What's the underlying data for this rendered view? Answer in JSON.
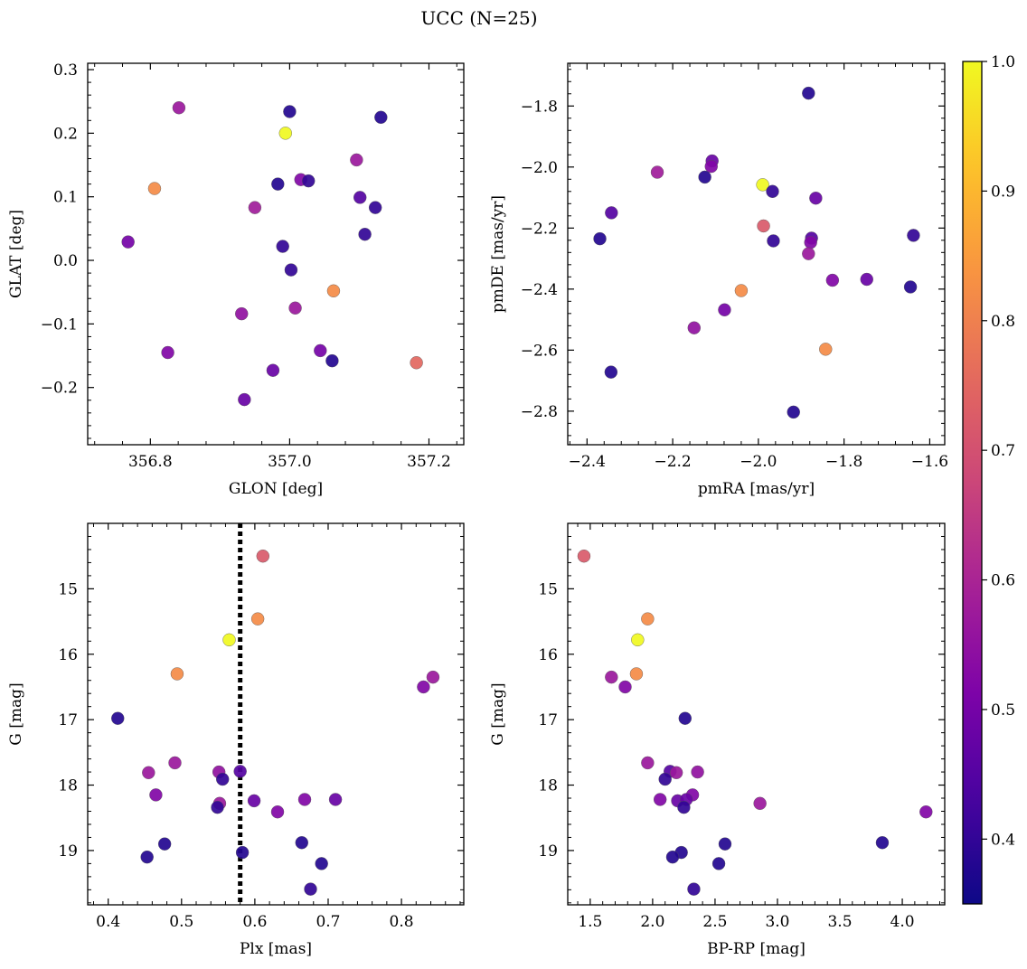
{
  "figure": {
    "title": "UCC (N=25)"
  },
  "colorbar": {
    "min": 0.35,
    "max": 1.0,
    "ticks": [
      0.4,
      0.5,
      0.6,
      0.7,
      0.8,
      0.9,
      1.0
    ],
    "tick_labels": [
      "0.4",
      "0.5",
      "0.6",
      "0.7",
      "0.8",
      "0.9",
      "1.0"
    ],
    "colormap": "plasma"
  },
  "chart_data": [
    {
      "id": "glon-glat",
      "type": "scatter",
      "xlabel": "GLON [deg]",
      "ylabel": "GLAT [deg]",
      "xlim": [
        356.71,
        357.25
      ],
      "ylim": [
        -0.29,
        0.31
      ],
      "xticks": [
        356.8,
        357.0,
        357.2
      ],
      "xtick_labels": [
        "356.8",
        "357.0",
        "357.2"
      ],
      "yticks": [
        -0.2,
        -0.1,
        0.0,
        0.1,
        0.2,
        0.3
      ],
      "ytick_labels": [
        "−0.2",
        "−0.1",
        "0.0",
        "0.1",
        "0.2",
        "0.3"
      ],
      "y_inverted": false,
      "points": [
        {
          "x": 356.841,
          "y": 0.24,
          "c": 0.57
        },
        {
          "x": 357.0,
          "y": 0.234,
          "c": 0.38
        },
        {
          "x": 357.131,
          "y": 0.225,
          "c": 0.38
        },
        {
          "x": 356.994,
          "y": 0.2,
          "c": 1.0
        },
        {
          "x": 357.096,
          "y": 0.158,
          "c": 0.57
        },
        {
          "x": 356.806,
          "y": 0.113,
          "c": 0.82
        },
        {
          "x": 356.983,
          "y": 0.12,
          "c": 0.38
        },
        {
          "x": 357.016,
          "y": 0.127,
          "c": 0.52
        },
        {
          "x": 357.027,
          "y": 0.125,
          "c": 0.4
        },
        {
          "x": 357.101,
          "y": 0.099,
          "c": 0.45
        },
        {
          "x": 357.123,
          "y": 0.083,
          "c": 0.4
        },
        {
          "x": 356.95,
          "y": 0.083,
          "c": 0.58
        },
        {
          "x": 357.108,
          "y": 0.041,
          "c": 0.4
        },
        {
          "x": 356.768,
          "y": 0.029,
          "c": 0.5
        },
        {
          "x": 356.99,
          "y": 0.022,
          "c": 0.4
        },
        {
          "x": 357.002,
          "y": -0.015,
          "c": 0.4
        },
        {
          "x": 357.063,
          "y": -0.048,
          "c": 0.82
        },
        {
          "x": 357.008,
          "y": -0.075,
          "c": 0.57
        },
        {
          "x": 356.931,
          "y": -0.084,
          "c": 0.55
        },
        {
          "x": 357.044,
          "y": -0.142,
          "c": 0.5
        },
        {
          "x": 356.825,
          "y": -0.145,
          "c": 0.52
        },
        {
          "x": 357.061,
          "y": -0.158,
          "c": 0.38
        },
        {
          "x": 357.182,
          "y": -0.161,
          "c": 0.75
        },
        {
          "x": 356.976,
          "y": -0.173,
          "c": 0.48
        },
        {
          "x": 356.935,
          "y": -0.219,
          "c": 0.48
        }
      ]
    },
    {
      "id": "pmra-pmde",
      "type": "scatter",
      "xlabel": "pmRA [mas/yr]",
      "ylabel": "pmDE [mas/yr]",
      "xlim": [
        -2.445,
        -1.565
      ],
      "ylim": [
        -2.91,
        -1.66
      ],
      "xticks": [
        -2.4,
        -2.2,
        -2.0,
        -1.8,
        -1.6
      ],
      "xtick_labels": [
        "−2.4",
        "−2.2",
        "−2.0",
        "−1.8",
        "−1.6"
      ],
      "yticks": [
        -2.8,
        -2.6,
        -2.4,
        -2.2,
        -2.0,
        -1.8
      ],
      "ytick_labels": [
        "−2.8",
        "−2.6",
        "−2.4",
        "−2.2",
        "−2.0",
        "−1.8"
      ],
      "y_inverted": false,
      "points": [
        {
          "x": -1.883,
          "y": -1.758,
          "c": 0.38
        },
        {
          "x": -2.236,
          "y": -2.017,
          "c": 0.58
        },
        {
          "x": -2.108,
          "y": -1.98,
          "c": 0.48
        },
        {
          "x": -2.11,
          "y": -1.998,
          "c": 0.52
        },
        {
          "x": -2.125,
          "y": -2.033,
          "c": 0.38
        },
        {
          "x": -1.99,
          "y": -2.058,
          "c": 1.0
        },
        {
          "x": -1.967,
          "y": -2.08,
          "c": 0.4
        },
        {
          "x": -1.866,
          "y": -2.102,
          "c": 0.48
        },
        {
          "x": -2.343,
          "y": -2.15,
          "c": 0.45
        },
        {
          "x": -1.988,
          "y": -2.193,
          "c": 0.72
        },
        {
          "x": -1.638,
          "y": -2.224,
          "c": 0.4
        },
        {
          "x": -2.37,
          "y": -2.235,
          "c": 0.38
        },
        {
          "x": -1.876,
          "y": -2.233,
          "c": 0.45
        },
        {
          "x": -1.878,
          "y": -2.247,
          "c": 0.52
        },
        {
          "x": -1.965,
          "y": -2.242,
          "c": 0.4
        },
        {
          "x": -1.883,
          "y": -2.284,
          "c": 0.57
        },
        {
          "x": -1.827,
          "y": -2.371,
          "c": 0.52
        },
        {
          "x": -1.747,
          "y": -2.368,
          "c": 0.48
        },
        {
          "x": -1.645,
          "y": -2.393,
          "c": 0.38
        },
        {
          "x": -2.04,
          "y": -2.405,
          "c": 0.82
        },
        {
          "x": -2.079,
          "y": -2.468,
          "c": 0.5
        },
        {
          "x": -2.15,
          "y": -2.527,
          "c": 0.55
        },
        {
          "x": -1.843,
          "y": -2.597,
          "c": 0.82
        },
        {
          "x": -2.344,
          "y": -2.672,
          "c": 0.38
        },
        {
          "x": -1.918,
          "y": -2.803,
          "c": 0.38
        }
      ]
    },
    {
      "id": "plx-g",
      "type": "scatter",
      "xlabel": "Plx [mas]",
      "ylabel": "G [mag]",
      "xlim": [
        0.372,
        0.885
      ],
      "ylim": [
        19.83,
        14.0
      ],
      "xticks": [
        0.4,
        0.5,
        0.6,
        0.7,
        0.8
      ],
      "xtick_labels": [
        "0.4",
        "0.5",
        "0.6",
        "0.7",
        "0.8"
      ],
      "yticks": [
        15,
        16,
        17,
        18,
        19
      ],
      "ytick_labels": [
        "15",
        "16",
        "17",
        "18",
        "19"
      ],
      "y_inverted": true,
      "vline": {
        "x": 0.58
      },
      "points": [
        {
          "x": 0.611,
          "y": 14.5,
          "c": 0.72
        },
        {
          "x": 0.604,
          "y": 15.46,
          "c": 0.82
        },
        {
          "x": 0.565,
          "y": 15.78,
          "c": 1.0
        },
        {
          "x": 0.494,
          "y": 16.3,
          "c": 0.82
        },
        {
          "x": 0.843,
          "y": 16.35,
          "c": 0.57
        },
        {
          "x": 0.83,
          "y": 16.5,
          "c": 0.52
        },
        {
          "x": 0.413,
          "y": 16.98,
          "c": 0.38
        },
        {
          "x": 0.491,
          "y": 17.66,
          "c": 0.57
        },
        {
          "x": 0.455,
          "y": 17.81,
          "c": 0.57
        },
        {
          "x": 0.551,
          "y": 17.8,
          "c": 0.55
        },
        {
          "x": 0.58,
          "y": 17.79,
          "c": 0.45
        },
        {
          "x": 0.556,
          "y": 17.91,
          "c": 0.4
        },
        {
          "x": 0.465,
          "y": 18.15,
          "c": 0.52
        },
        {
          "x": 0.599,
          "y": 18.24,
          "c": 0.48
        },
        {
          "x": 0.668,
          "y": 18.22,
          "c": 0.52
        },
        {
          "x": 0.71,
          "y": 18.22,
          "c": 0.48
        },
        {
          "x": 0.552,
          "y": 18.28,
          "c": 0.57
        },
        {
          "x": 0.549,
          "y": 18.34,
          "c": 0.4
        },
        {
          "x": 0.631,
          "y": 18.41,
          "c": 0.52
        },
        {
          "x": 0.664,
          "y": 18.88,
          "c": 0.38
        },
        {
          "x": 0.477,
          "y": 18.9,
          "c": 0.38
        },
        {
          "x": 0.583,
          "y": 19.03,
          "c": 0.38
        },
        {
          "x": 0.453,
          "y": 19.1,
          "c": 0.38
        },
        {
          "x": 0.691,
          "y": 19.2,
          "c": 0.38
        },
        {
          "x": 0.676,
          "y": 19.59,
          "c": 0.4
        }
      ]
    },
    {
      "id": "bprp-g",
      "type": "scatter",
      "xlabel": "BP-RP [mag]",
      "ylabel": "G [mag]",
      "xlim": [
        1.32,
        4.34
      ],
      "ylim": [
        19.83,
        14.0
      ],
      "xticks": [
        1.5,
        2.0,
        2.5,
        3.0,
        3.5,
        4.0
      ],
      "xtick_labels": [
        "1.5",
        "2.0",
        "2.5",
        "3.0",
        "3.5",
        "4.0"
      ],
      "yticks": [
        15,
        16,
        17,
        18,
        19
      ],
      "ytick_labels": [
        "15",
        "16",
        "17",
        "18",
        "19"
      ],
      "y_inverted": true,
      "points": [
        {
          "x": 1.45,
          "y": 14.5,
          "c": 0.72
        },
        {
          "x": 1.96,
          "y": 15.46,
          "c": 0.82
        },
        {
          "x": 1.88,
          "y": 15.78,
          "c": 1.0
        },
        {
          "x": 1.67,
          "y": 16.35,
          "c": 0.57
        },
        {
          "x": 1.87,
          "y": 16.3,
          "c": 0.82
        },
        {
          "x": 1.78,
          "y": 16.5,
          "c": 0.52
        },
        {
          "x": 2.26,
          "y": 16.98,
          "c": 0.38
        },
        {
          "x": 1.96,
          "y": 17.66,
          "c": 0.57
        },
        {
          "x": 2.14,
          "y": 17.79,
          "c": 0.45
        },
        {
          "x": 2.19,
          "y": 17.81,
          "c": 0.57
        },
        {
          "x": 2.36,
          "y": 17.8,
          "c": 0.55
        },
        {
          "x": 2.1,
          "y": 17.91,
          "c": 0.4
        },
        {
          "x": 2.32,
          "y": 18.15,
          "c": 0.52
        },
        {
          "x": 2.06,
          "y": 18.22,
          "c": 0.52
        },
        {
          "x": 2.2,
          "y": 18.24,
          "c": 0.48
        },
        {
          "x": 2.27,
          "y": 18.22,
          "c": 0.48
        },
        {
          "x": 2.86,
          "y": 18.28,
          "c": 0.57
        },
        {
          "x": 2.25,
          "y": 18.34,
          "c": 0.4
        },
        {
          "x": 4.19,
          "y": 18.41,
          "c": 0.52
        },
        {
          "x": 3.84,
          "y": 18.88,
          "c": 0.38
        },
        {
          "x": 2.58,
          "y": 18.9,
          "c": 0.38
        },
        {
          "x": 2.23,
          "y": 19.03,
          "c": 0.38
        },
        {
          "x": 2.16,
          "y": 19.1,
          "c": 0.38
        },
        {
          "x": 2.53,
          "y": 19.2,
          "c": 0.38
        },
        {
          "x": 2.33,
          "y": 19.59,
          "c": 0.4
        }
      ]
    }
  ]
}
